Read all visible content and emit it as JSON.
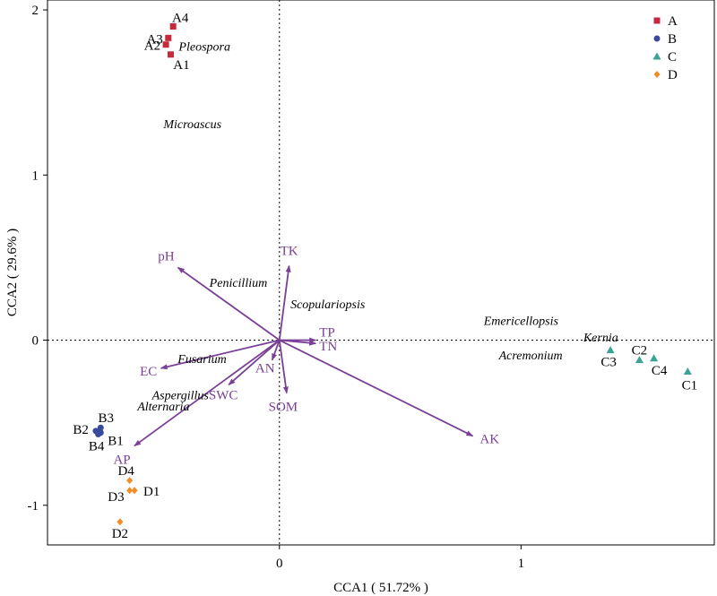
{
  "chart_data": {
    "type": "scatter",
    "subtype": "CCA biplot",
    "title": "",
    "xlabel": "CCA1 ( 51.72% )",
    "ylabel": "CCA2 ( 29.6% )",
    "xlim": [
      -0.96,
      1.8
    ],
    "ylim": [
      -1.24,
      2.06
    ],
    "xticks": [
      0,
      1
    ],
    "yticks": [
      -1,
      0,
      1,
      2
    ],
    "reference_lines": {
      "x": 0,
      "y": 0,
      "style": "dotted"
    },
    "legend_position": "top-right",
    "colors": {
      "arrow": "#7a3f96",
      "axis": "#000000"
    },
    "series": [
      {
        "name": "A",
        "marker": "square",
        "color": "#c8283c",
        "points": [
          {
            "label": "A1",
            "x": -0.45,
            "y": 1.73
          },
          {
            "label": "A2",
            "x": -0.47,
            "y": 1.79
          },
          {
            "label": "A3",
            "x": -0.46,
            "y": 1.83
          },
          {
            "label": "A4",
            "x": -0.44,
            "y": 1.9
          }
        ]
      },
      {
        "name": "B",
        "marker": "circle",
        "color": "#3a4a9a",
        "points": [
          {
            "label": "B1",
            "x": -0.74,
            "y": -0.56
          },
          {
            "label": "B2",
            "x": -0.76,
            "y": -0.55
          },
          {
            "label": "B3",
            "x": -0.74,
            "y": -0.53
          },
          {
            "label": "B4",
            "x": -0.75,
            "y": -0.57
          }
        ]
      },
      {
        "name": "C",
        "marker": "triangle",
        "color": "#3aa394",
        "points": [
          {
            "label": "C1",
            "x": 1.69,
            "y": -0.19
          },
          {
            "label": "C2",
            "x": 1.49,
            "y": -0.12
          },
          {
            "label": "C3",
            "x": 1.37,
            "y": -0.06
          },
          {
            "label": "C4",
            "x": 1.55,
            "y": -0.11
          }
        ]
      },
      {
        "name": "D",
        "marker": "diamond",
        "color": "#f28c28",
        "points": [
          {
            "label": "D1",
            "x": -0.6,
            "y": -0.91
          },
          {
            "label": "D2",
            "x": -0.66,
            "y": -1.1
          },
          {
            "label": "D3",
            "x": -0.62,
            "y": -0.91
          },
          {
            "label": "D4",
            "x": -0.62,
            "y": -0.85
          }
        ]
      }
    ],
    "env_vectors": [
      {
        "name": "pH",
        "x": -0.42,
        "y": 0.44
      },
      {
        "name": "TK",
        "x": 0.04,
        "y": 0.45
      },
      {
        "name": "TP",
        "x": 0.15,
        "y": 0.0
      },
      {
        "name": "TN",
        "x": 0.15,
        "y": -0.02
      },
      {
        "name": "AN",
        "x": -0.03,
        "y": -0.12
      },
      {
        "name": "SOM",
        "x": 0.03,
        "y": -0.32
      },
      {
        "name": "SWC",
        "x": -0.21,
        "y": -0.27
      },
      {
        "name": "EC",
        "x": -0.49,
        "y": -0.17
      },
      {
        "name": "AP",
        "x": -0.6,
        "y": -0.64
      },
      {
        "name": "AK",
        "x": 0.8,
        "y": -0.58
      }
    ],
    "species": [
      {
        "name": "Pleospora",
        "x": -0.31,
        "y": 1.78
      },
      {
        "name": "Microascus",
        "x": -0.36,
        "y": 1.31
      },
      {
        "name": "Penicillium",
        "x": -0.17,
        "y": 0.35
      },
      {
        "name": "Scopulariopsis",
        "x": 0.2,
        "y": 0.22
      },
      {
        "name": "Emericellopsis",
        "x": 1.0,
        "y": 0.12
      },
      {
        "name": "Kernia",
        "x": 1.33,
        "y": 0.02
      },
      {
        "name": "Acremonium",
        "x": 1.04,
        "y": -0.09
      },
      {
        "name": "Fusarium",
        "x": -0.32,
        "y": -0.11
      },
      {
        "name": "Aspergillus",
        "x": -0.41,
        "y": -0.33
      },
      {
        "name": "Alternaria",
        "x": -0.48,
        "y": -0.4
      }
    ]
  }
}
